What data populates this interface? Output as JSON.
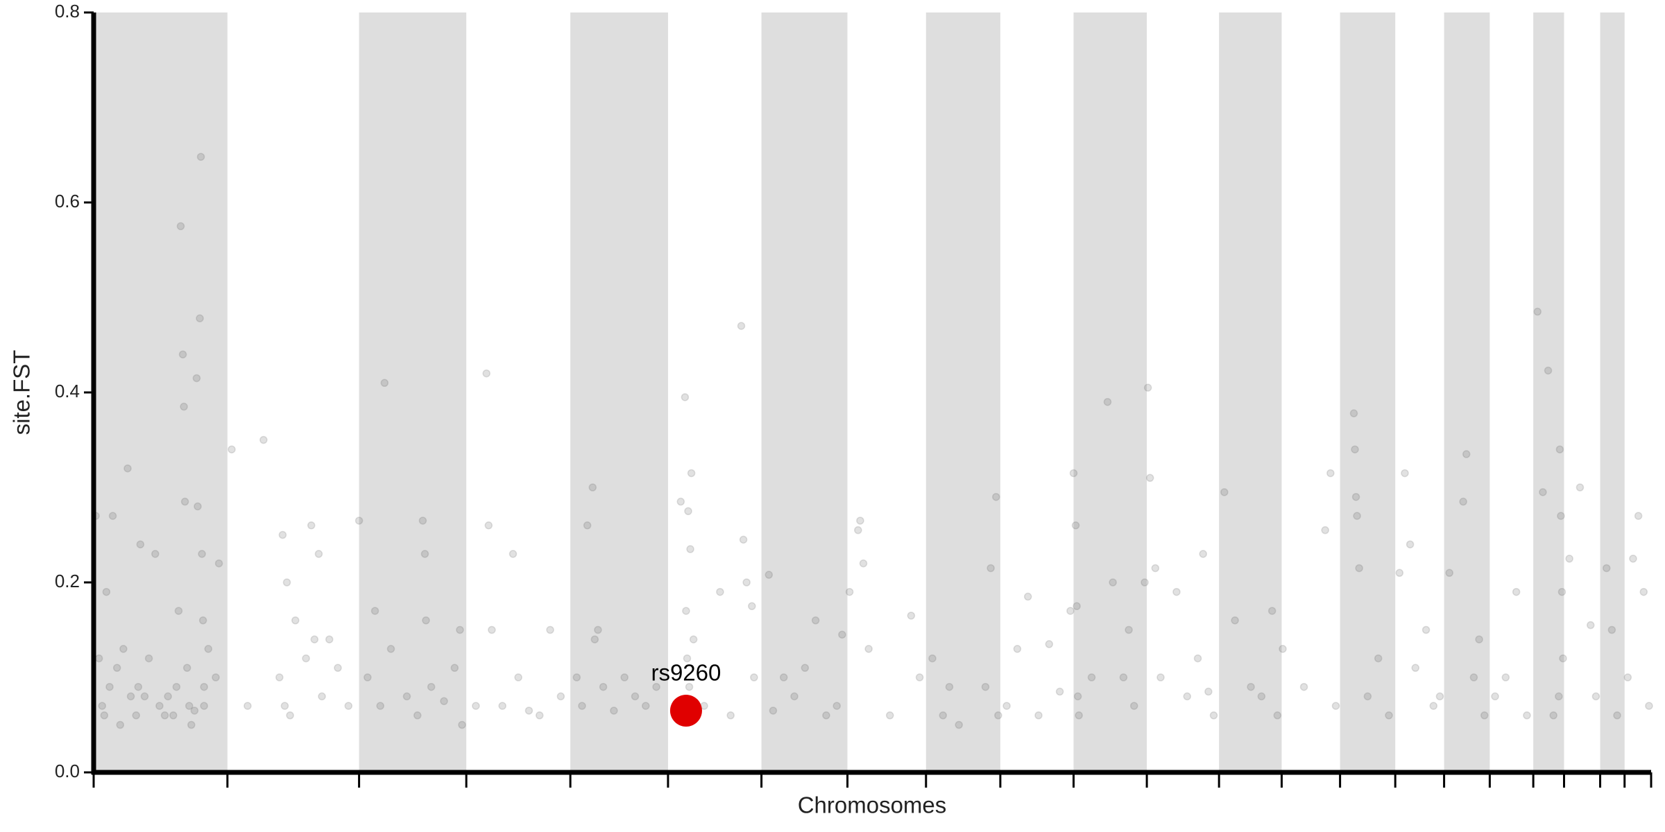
{
  "chart_data": {
    "type": "scatter",
    "ylabel": "site.FST",
    "xlabel": "Chromosomes",
    "xlim": [
      0,
      1467
    ],
    "ylim": [
      0,
      0.8
    ],
    "yticks": [
      {
        "value": 0,
        "label": "0.0"
      },
      0.2,
      0.4,
      0.6,
      0.8
    ],
    "chromosome_boundaries": [
      0,
      126,
      250,
      351,
      449,
      541,
      629,
      710,
      784,
      854,
      923,
      992,
      1060,
      1119,
      1174,
      1226,
      1272,
      1315,
      1356,
      1385,
      1419,
      1442,
      1467
    ],
    "band_color": "#dedede",
    "color": "rgba(70,70,70,0.16)",
    "x": [
      2,
      5,
      8,
      12,
      15,
      18,
      22,
      28,
      32,
      35,
      40,
      44,
      48,
      52,
      58,
      62,
      70,
      75,
      80,
      82,
      84,
      85,
      86,
      88,
      90,
      95,
      97,
      98,
      100,
      101,
      102,
      103,
      104,
      108,
      115,
      118,
      10,
      25,
      42,
      67,
      78,
      92,
      104,
      130,
      145,
      160,
      175,
      178,
      180,
      182,
      185,
      190,
      200,
      205,
      208,
      212,
      215,
      222,
      230,
      240,
      250,
      258,
      265,
      270,
      274,
      280,
      295,
      305,
      310,
      312,
      313,
      318,
      330,
      345,
      347,
      340,
      360,
      370,
      372,
      375,
      385,
      395,
      400,
      410,
      420,
      430,
      440,
      455,
      460,
      465,
      470,
      472,
      475,
      480,
      490,
      500,
      510,
      520,
      530,
      553,
      557,
      560,
      562,
      558,
      559,
      561,
      563,
      565,
      575,
      590,
      610,
      612,
      615,
      620,
      622,
      600,
      636,
      640,
      650,
      660,
      670,
      680,
      690,
      700,
      705,
      712,
      720,
      722,
      725,
      730,
      750,
      770,
      778,
      790,
      800,
      806,
      815,
      840,
      845,
      850,
      852,
      860,
      870,
      880,
      890,
      900,
      910,
      920,
      923,
      925,
      926,
      927,
      928,
      940,
      955,
      960,
      970,
      975,
      980,
      990,
      993,
      995,
      1000,
      1005,
      1020,
      1030,
      1040,
      1045,
      1050,
      1055,
      1065,
      1075,
      1090,
      1100,
      1110,
      1115,
      1120,
      1140,
      1160,
      1165,
      1170,
      1187,
      1188,
      1189,
      1190,
      1192,
      1200,
      1210,
      1220,
      1230,
      1235,
      1240,
      1245,
      1255,
      1262,
      1268,
      1277,
      1290,
      1293,
      1300,
      1305,
      1310,
      1320,
      1330,
      1340,
      1350,
      1360,
      1365,
      1370,
      1381,
      1382,
      1383,
      1384,
      1380,
      1375,
      1390,
      1400,
      1410,
      1415,
      1425,
      1430,
      1435,
      1450,
      1455,
      1460,
      1465,
      1445
    ],
    "values": [
      0.27,
      0.12,
      0.07,
      0.19,
      0.09,
      0.27,
      0.11,
      0.13,
      0.32,
      0.08,
      0.06,
      0.24,
      0.08,
      0.12,
      0.23,
      0.07,
      0.08,
      0.06,
      0.17,
      0.575,
      0.44,
      0.385,
      0.285,
      0.11,
      0.07,
      0.065,
      0.415,
      0.28,
      0.478,
      0.648,
      0.23,
      0.16,
      0.07,
      0.13,
      0.1,
      0.22,
      0.06,
      0.05,
      0.09,
      0.06,
      0.09,
      0.05,
      0.09,
      0.34,
      0.07,
      0.35,
      0.1,
      0.25,
      0.07,
      0.2,
      0.06,
      0.16,
      0.12,
      0.26,
      0.14,
      0.23,
      0.08,
      0.14,
      0.11,
      0.07,
      0.265,
      0.1,
      0.17,
      0.07,
      0.41,
      0.13,
      0.08,
      0.06,
      0.265,
      0.23,
      0.16,
      0.09,
      0.075,
      0.15,
      0.05,
      0.11,
      0.07,
      0.42,
      0.26,
      0.15,
      0.07,
      0.23,
      0.1,
      0.065,
      0.06,
      0.15,
      0.08,
      0.1,
      0.07,
      0.26,
      0.3,
      0.14,
      0.15,
      0.09,
      0.065,
      0.1,
      0.08,
      0.07,
      0.09,
      0.285,
      0.395,
      0.275,
      0.235,
      0.17,
      0.12,
      0.09,
      0.315,
      0.14,
      0.07,
      0.19,
      0.47,
      0.245,
      0.2,
      0.175,
      0.1,
      0.06,
      0.208,
      0.065,
      0.1,
      0.08,
      0.11,
      0.16,
      0.06,
      0.07,
      0.145,
      0.19,
      0.255,
      0.265,
      0.22,
      0.13,
      0.06,
      0.165,
      0.1,
      0.12,
      0.06,
      0.09,
      0.05,
      0.09,
      0.215,
      0.29,
      0.06,
      0.07,
      0.13,
      0.185,
      0.06,
      0.135,
      0.085,
      0.17,
      0.315,
      0.26,
      0.175,
      0.08,
      0.06,
      0.1,
      0.39,
      0.2,
      0.1,
      0.15,
      0.07,
      0.2,
      0.405,
      0.31,
      0.215,
      0.1,
      0.19,
      0.08,
      0.12,
      0.23,
      0.085,
      0.06,
      0.295,
      0.16,
      0.09,
      0.08,
      0.17,
      0.06,
      0.13,
      0.09,
      0.255,
      0.315,
      0.07,
      0.378,
      0.34,
      0.29,
      0.27,
      0.215,
      0.08,
      0.12,
      0.06,
      0.21,
      0.315,
      0.24,
      0.11,
      0.15,
      0.07,
      0.08,
      0.21,
      0.285,
      0.335,
      0.1,
      0.14,
      0.06,
      0.08,
      0.1,
      0.19,
      0.06,
      0.485,
      0.295,
      0.423,
      0.34,
      0.27,
      0.19,
      0.12,
      0.08,
      0.06,
      0.225,
      0.3,
      0.155,
      0.08,
      0.215,
      0.15,
      0.06,
      0.225,
      0.27,
      0.19,
      0.07,
      0.1
    ],
    "highlight": {
      "label": "rs9260",
      "x": 558,
      "value": 0.065,
      "color": "#e00000"
    }
  }
}
